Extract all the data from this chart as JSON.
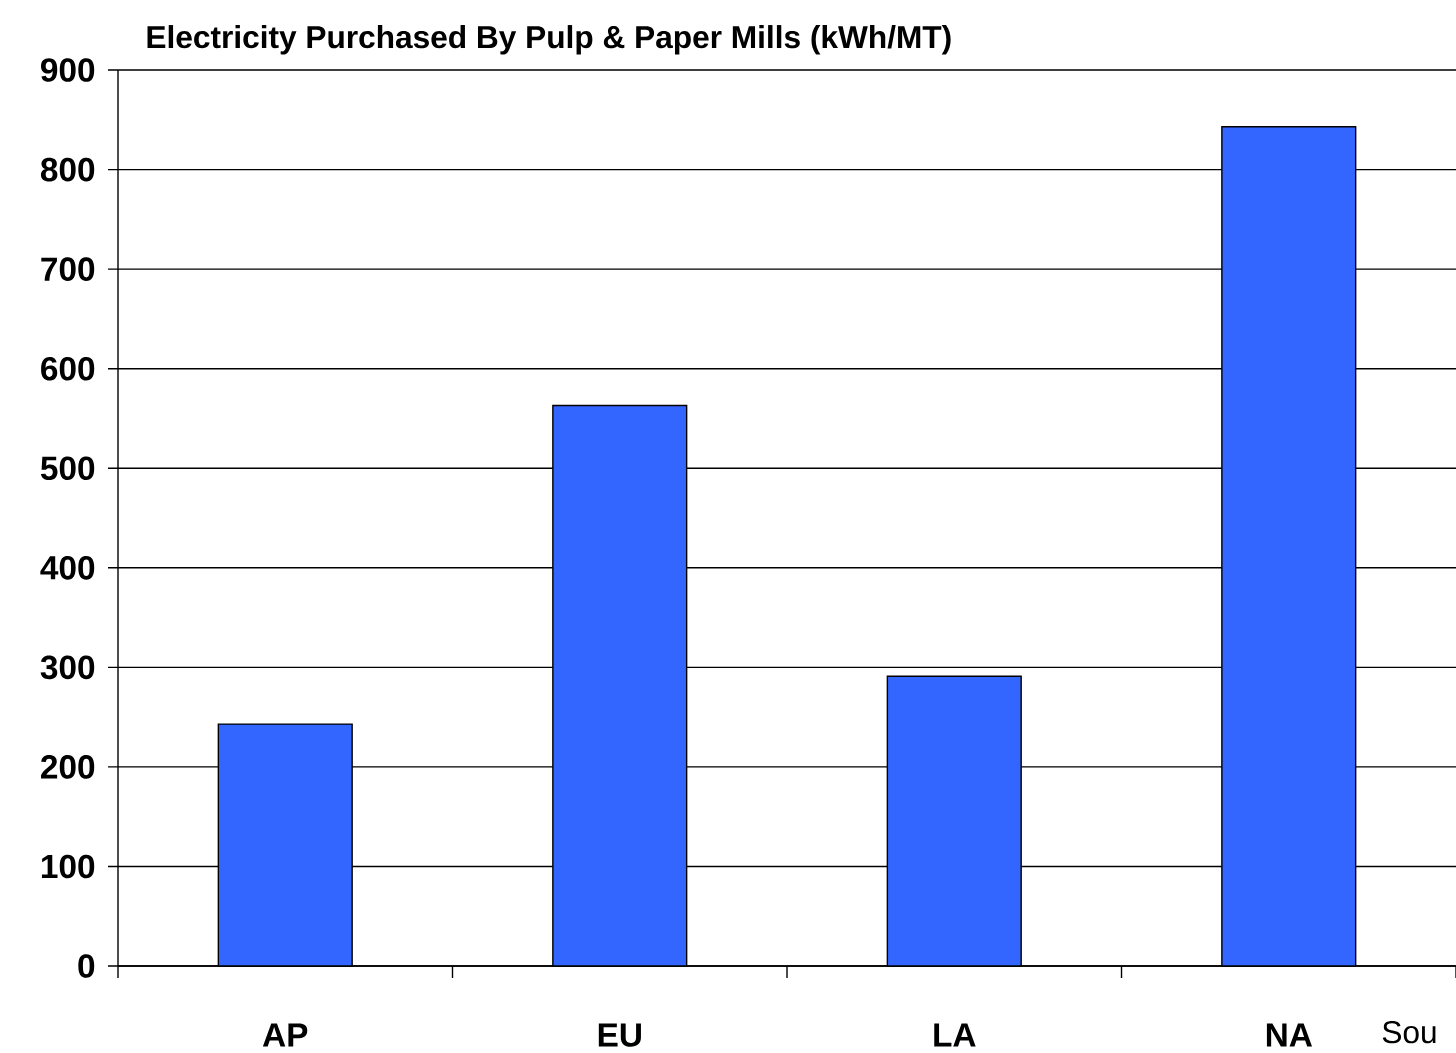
{
  "chart_data": {
    "type": "bar",
    "title": "Electricity Purchased By Pulp & Paper Mills (kWh/MT)",
    "categories": [
      "AP",
      "EU",
      "LA",
      "NA"
    ],
    "values": [
      243,
      563,
      291,
      843
    ],
    "color": "#3366ff",
    "ylim": [
      0,
      900
    ],
    "yticks": [
      0,
      100,
      200,
      300,
      400,
      500,
      600,
      700,
      800,
      900
    ],
    "grid": "y",
    "annotations": [
      "Sou"
    ]
  }
}
